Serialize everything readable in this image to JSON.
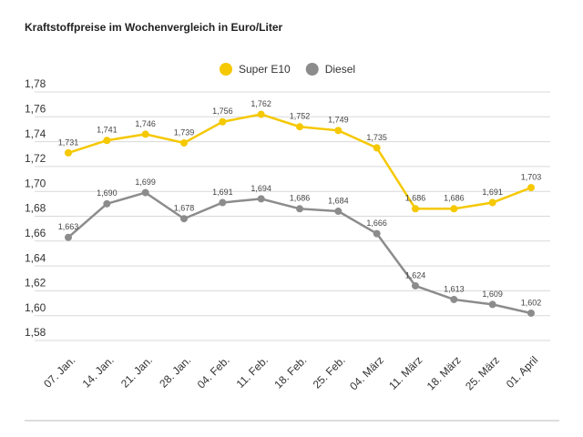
{
  "chart_data": {
    "type": "line",
    "title": "Kraftstoffpreise im Wochenvergleich in Euro/Liter",
    "categories": [
      "07. Jan.",
      "14. Jan.",
      "21. Jan.",
      "28. Jan.",
      "04. Feb.",
      "11. Feb.",
      "18. Feb.",
      "25. Feb.",
      "04. März",
      "11. März",
      "18. März",
      "25. März",
      "01. April"
    ],
    "series": [
      {
        "name": "Super E10",
        "color": "#f5c800",
        "values": [
          1.731,
          1.741,
          1.746,
          1.739,
          1.756,
          1.762,
          1.752,
          1.749,
          1.735,
          1.686,
          1.686,
          1.691,
          1.703
        ],
        "value_labels": [
          "1,731",
          "1,741",
          "1,746",
          "1,739",
          "1,756",
          "1,762",
          "1,752",
          "1,749",
          "1,735",
          "1,686",
          "1,686",
          "1,691",
          "1,703"
        ]
      },
      {
        "name": "Diesel",
        "color": "#8c8c8c",
        "values": [
          1.663,
          1.69,
          1.699,
          1.678,
          1.691,
          1.694,
          1.686,
          1.684,
          1.666,
          1.624,
          1.613,
          1.609,
          1.602
        ],
        "value_labels": [
          "1,663",
          "1,690",
          "1,699",
          "1,678",
          "1,691",
          "1,694",
          "1,686",
          "1,684",
          "1,666",
          "1,624",
          "1,613",
          "1,609",
          "1,602"
        ]
      }
    ],
    "ylim": [
      1.58,
      1.78
    ],
    "yticks": [
      {
        "value": 1.58,
        "label": "1,58"
      },
      {
        "value": 1.6,
        "label": "1,60"
      },
      {
        "value": 1.62,
        "label": "1,62"
      },
      {
        "value": 1.64,
        "label": "1,64"
      },
      {
        "value": 1.66,
        "label": "1,66"
      },
      {
        "value": 1.68,
        "label": "1,68"
      },
      {
        "value": 1.7,
        "label": "1,70"
      },
      {
        "value": 1.72,
        "label": "1,72"
      },
      {
        "value": 1.74,
        "label": "1,74"
      },
      {
        "value": 1.76,
        "label": "1,76"
      },
      {
        "value": 1.78,
        "label": "1,78"
      }
    ],
    "grid": true
  }
}
